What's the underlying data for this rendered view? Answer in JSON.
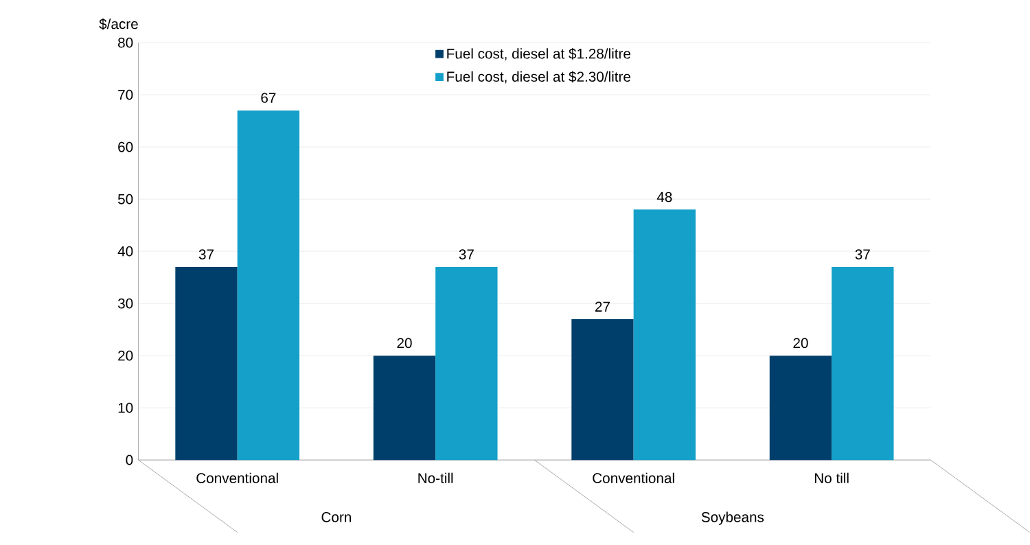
{
  "chart_data": {
    "type": "bar",
    "ylabel": "$/acre",
    "categories": [
      "Conventional",
      "No-till",
      "Conventional",
      "No till"
    ],
    "series": [
      {
        "name": "Fuel cost, diesel at $1.28/litre",
        "color": "#003f6b",
        "values": [
          37,
          20,
          27,
          20
        ]
      },
      {
        "name": "Fuel cost, diesel at $2.30/litre",
        "color": "#14a0c8",
        "values": [
          67,
          37,
          48,
          37
        ]
      }
    ],
    "ylim": [
      0,
      80
    ],
    "yticks": [
      0,
      10,
      20,
      30,
      40,
      50,
      60,
      70,
      80
    ],
    "grid": "y",
    "legend": "top",
    "data_labels": true,
    "annotations": [
      "Corn",
      "Soybeans"
    ]
  }
}
